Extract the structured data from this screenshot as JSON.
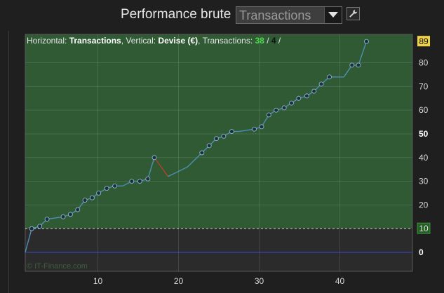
{
  "header": {
    "title": "Performance brute",
    "select_value": "Transactions"
  },
  "colors": {
    "plot_green": "#2f5a33",
    "plot_dark": "#2b2b2b",
    "line": "#4f8fb4",
    "point": "#1c2f3c",
    "drawdown_line": "#b4422c",
    "baseline": "#3b49c8",
    "threshold": "#cfcfcf",
    "last_label_bg": "#f0d247",
    "threshold_label_bg": "#235e23",
    "count_green": "#4cd94c"
  },
  "info": {
    "horizontal_prefix": "Horizontal: ",
    "horizontal_value": "Transactions",
    "vertical_prefix": ", Vertical: ",
    "vertical_value": "Devise (€)",
    "count_prefix": ", Transactions: ",
    "count_win": "38",
    "count_sep": " / ",
    "count_loss": "4",
    "count_end": " /"
  },
  "watermark": "© IT-Finance.com",
  "chart_data": {
    "type": "line",
    "xlabel": "Transactions",
    "ylabel": "Devise (€)",
    "xlim": [
      1,
      49
    ],
    "ylim": [
      -8,
      92
    ],
    "x_ticks": [
      10,
      20,
      30,
      40
    ],
    "y_ticks": [
      0,
      10,
      20,
      30,
      40,
      50,
      60,
      70,
      80,
      89
    ],
    "y_tick_labels": [
      "0",
      "10",
      "20",
      "30",
      "40",
      "50",
      "60",
      "70",
      "80",
      "89"
    ],
    "bold_y_ticks": [
      "0",
      "50"
    ],
    "threshold": 10,
    "last_value_label": "89",
    "threshold_label": "10",
    "grid": true,
    "series": [
      {
        "x": [
          1,
          1.8,
          2.8,
          3.7,
          5.7,
          6.6,
          7.5,
          8.4,
          9.3,
          10.1,
          11.1,
          12.1,
          13.1,
          14.2,
          15.2,
          16.2,
          17.0,
          18.7,
          21.1,
          22.9,
          23.8,
          24.7,
          25.6,
          26.6,
          27.5,
          29.4,
          30.3,
          31.2,
          32.1,
          33.1,
          34.0,
          34.9,
          35.9,
          36.8,
          37.7,
          38.7,
          40.5,
          41.5,
          42.3,
          43.3
        ],
        "y": [
          0,
          10,
          11,
          14,
          15,
          16,
          18,
          22,
          23,
          25,
          27,
          28,
          28,
          30,
          30,
          31,
          40,
          32,
          36,
          42,
          45,
          48,
          49,
          51,
          51,
          52,
          53,
          58,
          60,
          61,
          63,
          65,
          66,
          68,
          71,
          74,
          74,
          79,
          79,
          89
        ],
        "markers": [
          false,
          true,
          true,
          true,
          true,
          true,
          true,
          true,
          true,
          true,
          true,
          true,
          false,
          true,
          true,
          true,
          true,
          false,
          false,
          true,
          true,
          true,
          true,
          true,
          false,
          true,
          true,
          true,
          true,
          true,
          true,
          true,
          true,
          true,
          true,
          true,
          false,
          true,
          true,
          true
        ]
      }
    ]
  }
}
